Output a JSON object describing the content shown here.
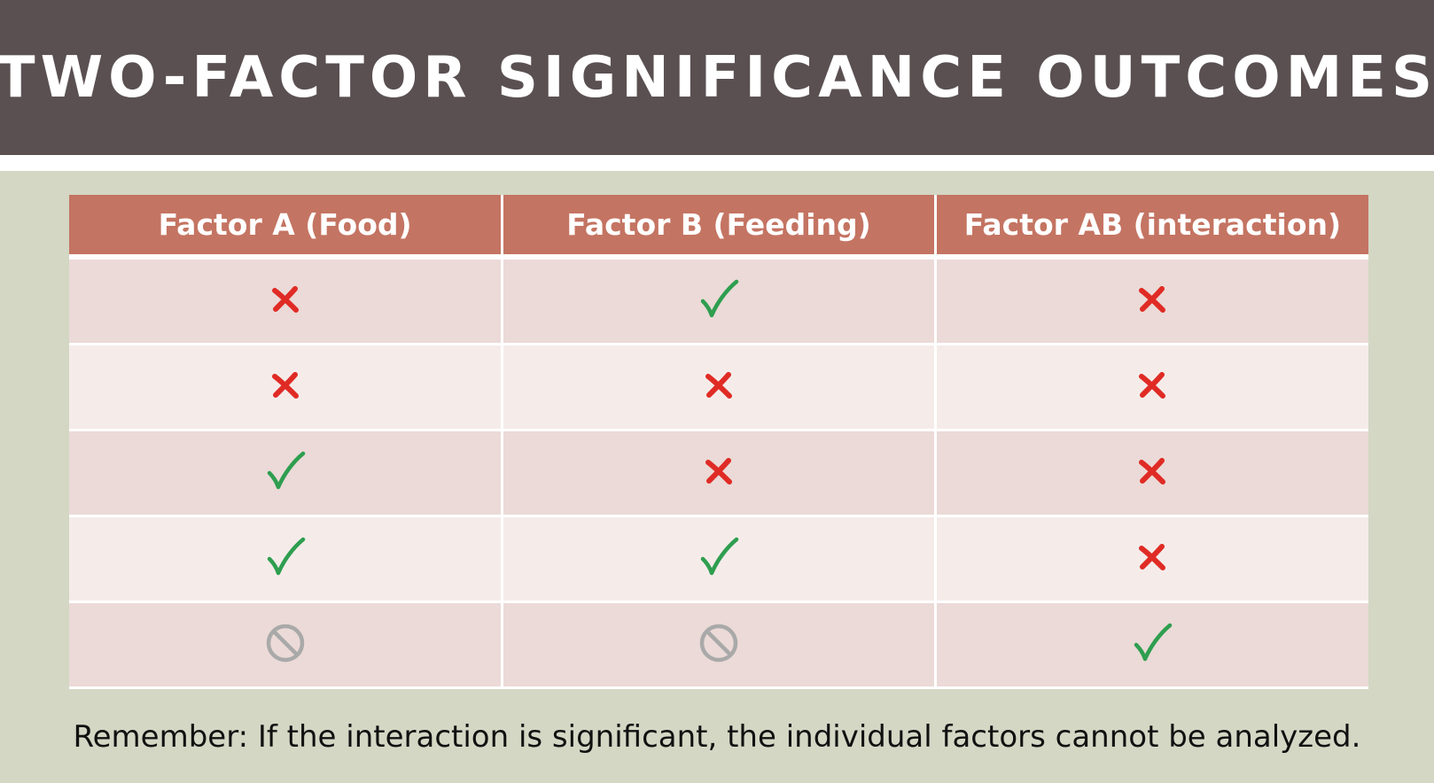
{
  "slide": {
    "title": "TWO-FACTOR SIGNIFICANCE OUTCOMES",
    "footer": "Remember: If the interaction is significant, the individual factors cannot be analyzed."
  },
  "table": {
    "headers": [
      "Factor A (Food)",
      "Factor B (Feeding)",
      "Factor AB (interaction)"
    ],
    "rows": [
      [
        "x-icon",
        "check-icon",
        "x-icon"
      ],
      [
        "x-icon",
        "x-icon",
        "x-icon"
      ],
      [
        "check-icon",
        "x-icon",
        "x-icon"
      ],
      [
        "check-icon",
        "check-icon",
        "x-icon"
      ],
      [
        "no-symbol-icon",
        "no-symbol-icon",
        "check-icon"
      ]
    ]
  },
  "colors": {
    "title_bar": "#5a5052",
    "header": "#c47462",
    "check": "#2e9e4f",
    "x": "#e02b25",
    "no_symbol": "#a9a9a9",
    "background": "#d3d7c4"
  }
}
